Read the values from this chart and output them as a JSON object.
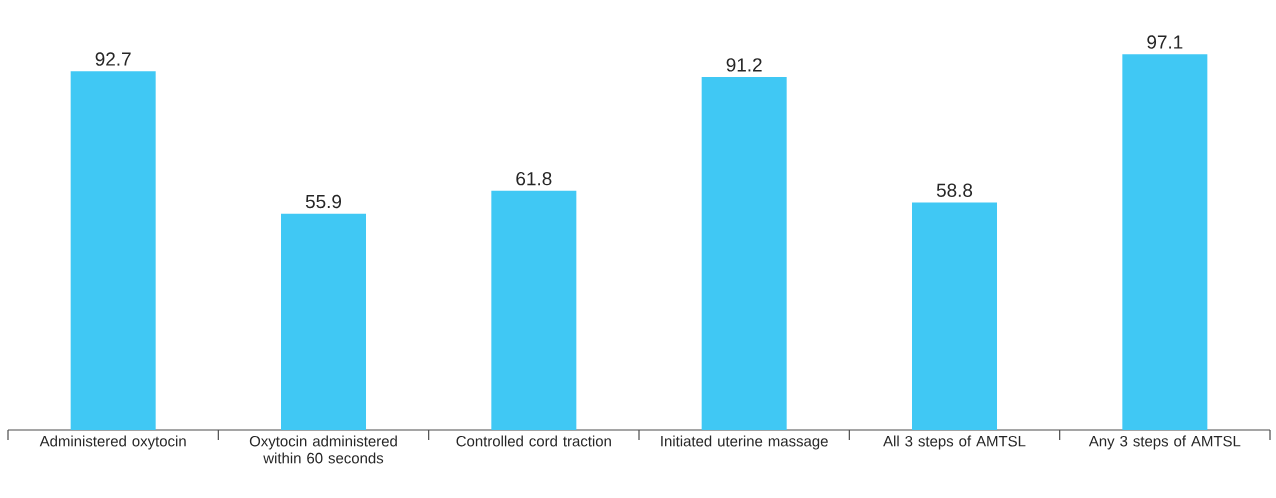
{
  "chart_data": {
    "type": "bar",
    "categories": [
      "Administered oxytocin",
      "Oxytocin administered within 60 seconds",
      "Controlled cord traction",
      "Initiated uterine massage",
      "All 3 steps of AMTSL",
      "Any 3 steps of AMTSL"
    ],
    "values": [
      92.7,
      55.9,
      61.8,
      91.2,
      58.8,
      97.1
    ],
    "color": "#40c8f4",
    "data_labels": true,
    "tick_labels": "x"
  }
}
